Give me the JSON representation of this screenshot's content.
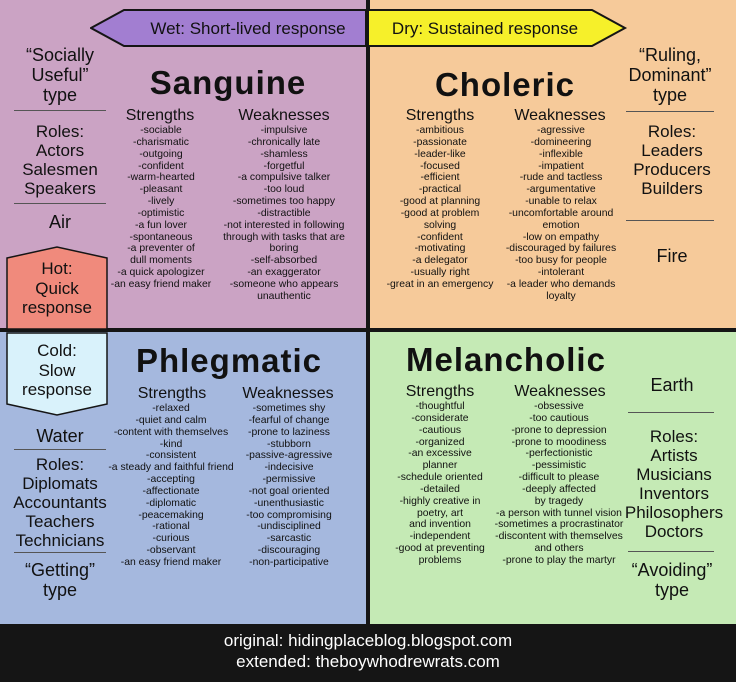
{
  "arrows": {
    "wet": "Wet: Short-lived response",
    "dry": "Dry: Sustained response",
    "wet_color": "#a27ed1",
    "dry_color": "#f6f02a"
  },
  "badges": {
    "hot": [
      "Hot:",
      "Quick",
      "response"
    ],
    "cold": [
      "Cold:",
      "Slow",
      "response"
    ],
    "hot_color": "#f08a7c",
    "cold_color": "#d9f2fb"
  },
  "sanguine": {
    "title": "Sanguine",
    "quote": [
      "“Socially",
      "Useful”",
      "type"
    ],
    "roles_title": "Roles:",
    "roles": [
      "Actors",
      "Salesmen",
      "Speakers"
    ],
    "element": "Air",
    "strengths_label": "Strengths",
    "weaknesses_label": "Weaknesses",
    "strengths": [
      "-sociable",
      "-charismatic",
      "-outgoing",
      "-confident",
      "-warm-hearted",
      "-pleasant",
      "-lively",
      "-optimistic",
      "-a fun lover",
      "-spontaneous",
      "-a preventer of",
      "dull moments",
      "-a quick apologizer",
      "-an easy friend maker"
    ],
    "weaknesses": [
      "-impulsive",
      "-chronically late",
      "-shamless",
      "-forgetful",
      "-a compulsive talker",
      "-too loud",
      "-sometimes too happy",
      "-distractible",
      "-not interested in following",
      "through with tasks that are",
      "boring",
      "-self-absorbed",
      "-an exaggerator",
      "-someone who appears",
      "unauthentic"
    ]
  },
  "choleric": {
    "title": "Choleric",
    "quote": [
      "“Ruling,",
      "Dominant”",
      "type"
    ],
    "roles_title": "Roles:",
    "roles": [
      "Leaders",
      "Producers",
      "Builders"
    ],
    "element": "Fire",
    "strengths_label": "Strengths",
    "weaknesses_label": "Weaknesses",
    "strengths": [
      "-ambitious",
      "-passionate",
      "-leader-like",
      "-focused",
      "-efficient",
      "-practical",
      "-good at planning",
      "-good at problem",
      "solving",
      "-confident",
      "-motivating",
      "-a delegator",
      "-usually right",
      "-great in an emergency"
    ],
    "weaknesses": [
      "-agressive",
      "-domineering",
      "-inflexible",
      "-impatient",
      "-rude and tactless",
      "-argumentative",
      "-unable to relax",
      "-uncomfortable around",
      "emotion",
      "-low on empathy",
      "-discouraged by failures",
      "-too busy for people",
      "-intolerant",
      "-a leader who demands",
      "loyalty"
    ]
  },
  "phlegmatic": {
    "title": "Phlegmatic",
    "quote": [
      "“Getting”",
      "type"
    ],
    "roles_title": "Roles:",
    "roles": [
      "Diplomats",
      "Accountants",
      "Teachers",
      "Technicians"
    ],
    "element": "Water",
    "strengths_label": "Strengths",
    "weaknesses_label": "Weaknesses",
    "strengths": [
      "-relaxed",
      "-quiet and calm",
      "-content with themselves",
      "-kind",
      "-consistent",
      "-a steady and faithful friend",
      "-accepting",
      "-affectionate",
      "-diplomatic",
      "-peacemaking",
      "-rational",
      "-curious",
      "-observant",
      "-an easy friend maker"
    ],
    "weaknesses": [
      "-sometimes shy",
      "-fearful of change",
      "-prone to laziness",
      "-stubborn",
      "-passive-agressive",
      "-indecisive",
      "-permissive",
      "-not goal oriented",
      "-unenthusiastic",
      "-too compromising",
      "-undisciplined",
      "-sarcastic",
      "-discouraging",
      "-non-participative"
    ]
  },
  "melancholic": {
    "title": "Melancholic",
    "quote": [
      "“Avoiding”",
      "type"
    ],
    "roles_title": "Roles:",
    "roles": [
      "Artists",
      "Musicians",
      "Inventors",
      "Philosophers",
      "Doctors"
    ],
    "element": "Earth",
    "strengths_label": "Strengths",
    "weaknesses_label": "Weaknesses",
    "strengths": [
      "-thoughtful",
      "-considerate",
      "-cautious",
      "-organized",
      "-an excessive",
      "planner",
      "-schedule oriented",
      "-detailed",
      "-highly creative in",
      "poetry, art",
      "and invention",
      "-independent",
      "-good at preventing",
      "problems"
    ],
    "weaknesses": [
      "-obsessive",
      "-too cautious",
      "-prone to depression",
      "-prone to moodiness",
      "-perfectionistic",
      "-pessimistic",
      "-difficult to please",
      "-deeply affected",
      "by tragedy",
      "-a person with tunnel vision",
      "-sometimes a procrastinator",
      "-discontent with themselves",
      "and others",
      "-prone to play the martyr"
    ]
  },
  "footer": {
    "original": "original: hidingplaceblog.blogspot.com",
    "extended": "extended: theboywhodrewrats.com"
  }
}
